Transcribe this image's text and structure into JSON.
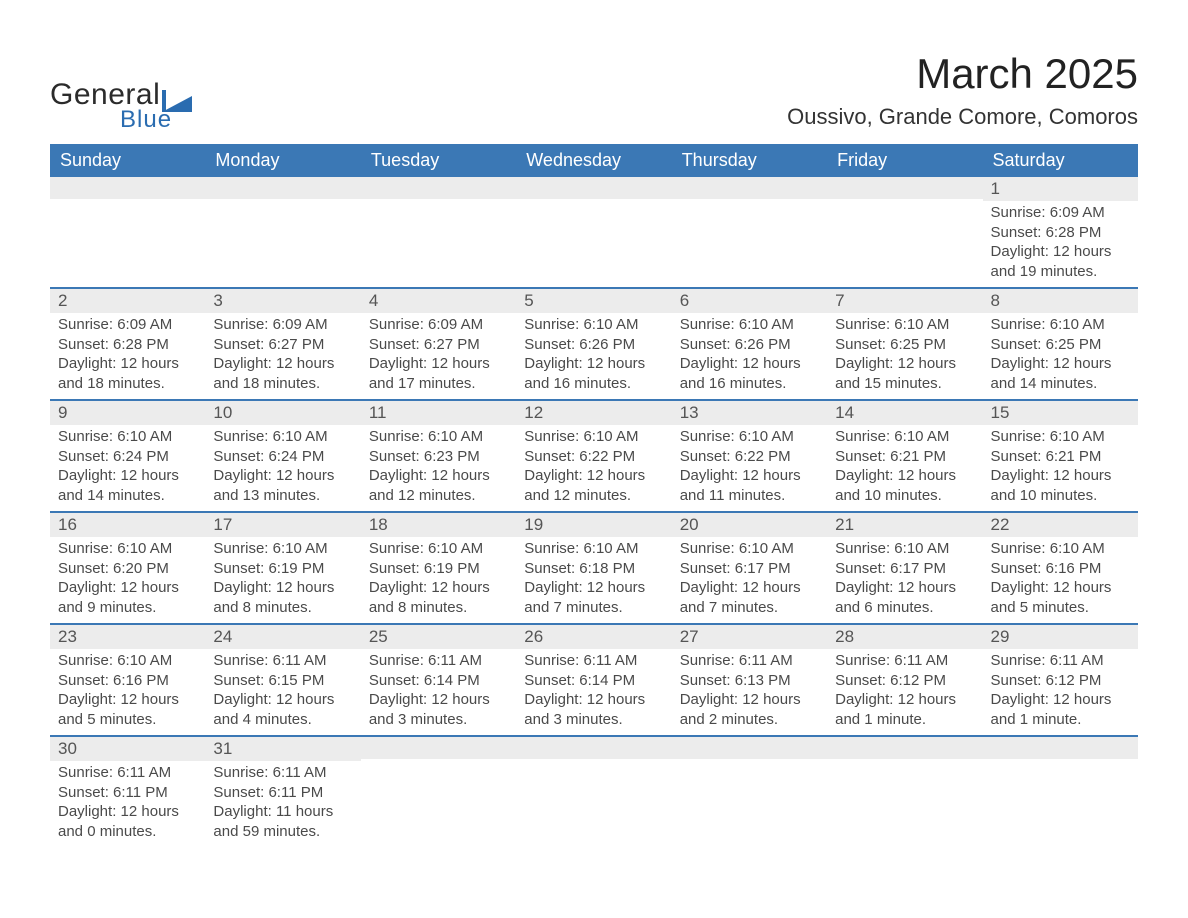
{
  "brand": {
    "line1": "General",
    "line2": "Blue",
    "logo_color": "#2a6cb0"
  },
  "title": "March 2025",
  "location": "Oussivo, Grande Comore, Comoros",
  "colors": {
    "header_bg": "#3b78b5",
    "header_text": "#ffffff",
    "daynum_bg": "#ececec",
    "row_separator": "#3b78b5",
    "page_bg": "#ffffff"
  },
  "weekdays": [
    "Sunday",
    "Monday",
    "Tuesday",
    "Wednesday",
    "Thursday",
    "Friday",
    "Saturday"
  ],
  "weeks": [
    [
      null,
      null,
      null,
      null,
      null,
      null,
      {
        "n": "1",
        "sunrise": "Sunrise: 6:09 AM",
        "sunset": "Sunset: 6:28 PM",
        "daylight": "Daylight: 12 hours and 19 minutes."
      }
    ],
    [
      {
        "n": "2",
        "sunrise": "Sunrise: 6:09 AM",
        "sunset": "Sunset: 6:28 PM",
        "daylight": "Daylight: 12 hours and 18 minutes."
      },
      {
        "n": "3",
        "sunrise": "Sunrise: 6:09 AM",
        "sunset": "Sunset: 6:27 PM",
        "daylight": "Daylight: 12 hours and 18 minutes."
      },
      {
        "n": "4",
        "sunrise": "Sunrise: 6:09 AM",
        "sunset": "Sunset: 6:27 PM",
        "daylight": "Daylight: 12 hours and 17 minutes."
      },
      {
        "n": "5",
        "sunrise": "Sunrise: 6:10 AM",
        "sunset": "Sunset: 6:26 PM",
        "daylight": "Daylight: 12 hours and 16 minutes."
      },
      {
        "n": "6",
        "sunrise": "Sunrise: 6:10 AM",
        "sunset": "Sunset: 6:26 PM",
        "daylight": "Daylight: 12 hours and 16 minutes."
      },
      {
        "n": "7",
        "sunrise": "Sunrise: 6:10 AM",
        "sunset": "Sunset: 6:25 PM",
        "daylight": "Daylight: 12 hours and 15 minutes."
      },
      {
        "n": "8",
        "sunrise": "Sunrise: 6:10 AM",
        "sunset": "Sunset: 6:25 PM",
        "daylight": "Daylight: 12 hours and 14 minutes."
      }
    ],
    [
      {
        "n": "9",
        "sunrise": "Sunrise: 6:10 AM",
        "sunset": "Sunset: 6:24 PM",
        "daylight": "Daylight: 12 hours and 14 minutes."
      },
      {
        "n": "10",
        "sunrise": "Sunrise: 6:10 AM",
        "sunset": "Sunset: 6:24 PM",
        "daylight": "Daylight: 12 hours and 13 minutes."
      },
      {
        "n": "11",
        "sunrise": "Sunrise: 6:10 AM",
        "sunset": "Sunset: 6:23 PM",
        "daylight": "Daylight: 12 hours and 12 minutes."
      },
      {
        "n": "12",
        "sunrise": "Sunrise: 6:10 AM",
        "sunset": "Sunset: 6:22 PM",
        "daylight": "Daylight: 12 hours and 12 minutes."
      },
      {
        "n": "13",
        "sunrise": "Sunrise: 6:10 AM",
        "sunset": "Sunset: 6:22 PM",
        "daylight": "Daylight: 12 hours and 11 minutes."
      },
      {
        "n": "14",
        "sunrise": "Sunrise: 6:10 AM",
        "sunset": "Sunset: 6:21 PM",
        "daylight": "Daylight: 12 hours and 10 minutes."
      },
      {
        "n": "15",
        "sunrise": "Sunrise: 6:10 AM",
        "sunset": "Sunset: 6:21 PM",
        "daylight": "Daylight: 12 hours and 10 minutes."
      }
    ],
    [
      {
        "n": "16",
        "sunrise": "Sunrise: 6:10 AM",
        "sunset": "Sunset: 6:20 PM",
        "daylight": "Daylight: 12 hours and 9 minutes."
      },
      {
        "n": "17",
        "sunrise": "Sunrise: 6:10 AM",
        "sunset": "Sunset: 6:19 PM",
        "daylight": "Daylight: 12 hours and 8 minutes."
      },
      {
        "n": "18",
        "sunrise": "Sunrise: 6:10 AM",
        "sunset": "Sunset: 6:19 PM",
        "daylight": "Daylight: 12 hours and 8 minutes."
      },
      {
        "n": "19",
        "sunrise": "Sunrise: 6:10 AM",
        "sunset": "Sunset: 6:18 PM",
        "daylight": "Daylight: 12 hours and 7 minutes."
      },
      {
        "n": "20",
        "sunrise": "Sunrise: 6:10 AM",
        "sunset": "Sunset: 6:17 PM",
        "daylight": "Daylight: 12 hours and 7 minutes."
      },
      {
        "n": "21",
        "sunrise": "Sunrise: 6:10 AM",
        "sunset": "Sunset: 6:17 PM",
        "daylight": "Daylight: 12 hours and 6 minutes."
      },
      {
        "n": "22",
        "sunrise": "Sunrise: 6:10 AM",
        "sunset": "Sunset: 6:16 PM",
        "daylight": "Daylight: 12 hours and 5 minutes."
      }
    ],
    [
      {
        "n": "23",
        "sunrise": "Sunrise: 6:10 AM",
        "sunset": "Sunset: 6:16 PM",
        "daylight": "Daylight: 12 hours and 5 minutes."
      },
      {
        "n": "24",
        "sunrise": "Sunrise: 6:11 AM",
        "sunset": "Sunset: 6:15 PM",
        "daylight": "Daylight: 12 hours and 4 minutes."
      },
      {
        "n": "25",
        "sunrise": "Sunrise: 6:11 AM",
        "sunset": "Sunset: 6:14 PM",
        "daylight": "Daylight: 12 hours and 3 minutes."
      },
      {
        "n": "26",
        "sunrise": "Sunrise: 6:11 AM",
        "sunset": "Sunset: 6:14 PM",
        "daylight": "Daylight: 12 hours and 3 minutes."
      },
      {
        "n": "27",
        "sunrise": "Sunrise: 6:11 AM",
        "sunset": "Sunset: 6:13 PM",
        "daylight": "Daylight: 12 hours and 2 minutes."
      },
      {
        "n": "28",
        "sunrise": "Sunrise: 6:11 AM",
        "sunset": "Sunset: 6:12 PM",
        "daylight": "Daylight: 12 hours and 1 minute."
      },
      {
        "n": "29",
        "sunrise": "Sunrise: 6:11 AM",
        "sunset": "Sunset: 6:12 PM",
        "daylight": "Daylight: 12 hours and 1 minute."
      }
    ],
    [
      {
        "n": "30",
        "sunrise": "Sunrise: 6:11 AM",
        "sunset": "Sunset: 6:11 PM",
        "daylight": "Daylight: 12 hours and 0 minutes."
      },
      {
        "n": "31",
        "sunrise": "Sunrise: 6:11 AM",
        "sunset": "Sunset: 6:11 PM",
        "daylight": "Daylight: 11 hours and 59 minutes."
      },
      null,
      null,
      null,
      null,
      null
    ]
  ]
}
